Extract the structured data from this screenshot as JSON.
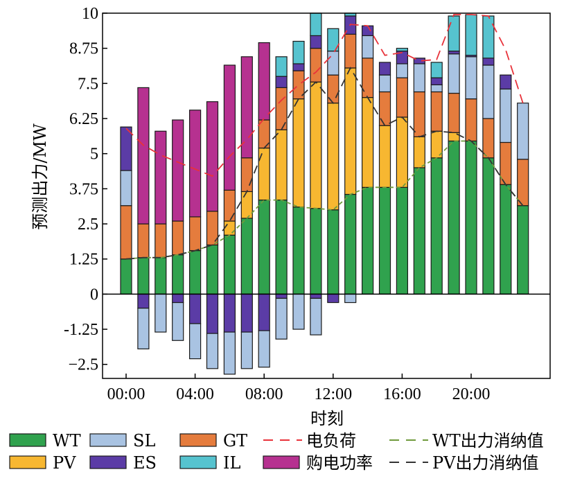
{
  "chart_data": {
    "type": "bar",
    "stacked": true,
    "xlabel": "时刻",
    "ylabel": "预测出力/MW",
    "ylim": [
      -3.0,
      10.0
    ],
    "yticks": [
      -2.5,
      -1.25,
      0,
      1.25,
      2.5,
      3.75,
      5,
      6.25,
      7.5,
      8.75,
      10
    ],
    "ytick_labels": [
      "−2.5",
      "-1.25",
      "0",
      "1.25",
      "2.5",
      "3.75",
      "5",
      "6.25",
      "7.5",
      "8.75",
      "10"
    ],
    "xtick_labels": [
      {
        "hour": 0,
        "label": "00:00"
      },
      {
        "hour": 4,
        "label": "04:00"
      },
      {
        "hour": 8,
        "label": "08:00"
      },
      {
        "hour": 12,
        "label": "12:00"
      },
      {
        "hour": 16,
        "label": "16:00"
      },
      {
        "hour": 20,
        "label": "20:00"
      }
    ],
    "hours": [
      0,
      1,
      2,
      3,
      4,
      5,
      6,
      7,
      8,
      9,
      10,
      11,
      12,
      13,
      14,
      15,
      16,
      17,
      18,
      19,
      20,
      21,
      22,
      23
    ],
    "series": [
      {
        "key": "WT",
        "name": "WT",
        "color": "#30a24e",
        "values": [
          1.25,
          1.3,
          1.3,
          1.4,
          1.55,
          1.75,
          2.1,
          2.7,
          3.35,
          3.35,
          3.1,
          3.05,
          3.0,
          3.55,
          3.8,
          3.8,
          3.8,
          4.5,
          4.85,
          5.45,
          5.45,
          4.85,
          3.9,
          3.15
        ]
      },
      {
        "key": "PV",
        "name": "PV",
        "color": "#f7b731",
        "values": [
          0,
          0,
          0,
          0,
          0,
          0,
          0.5,
          0.95,
          1.85,
          2.5,
          3.85,
          4.5,
          3.8,
          4.5,
          3.2,
          2.2,
          2.5,
          1.1,
          0.95,
          0.3,
          0,
          0,
          0,
          0
        ]
      },
      {
        "key": "GT",
        "name": "GT",
        "color": "#e57c3d",
        "values": [
          1.9,
          1.2,
          1.2,
          1.2,
          1.2,
          1.2,
          1.1,
          1.2,
          1.0,
          1.5,
          1.0,
          1.2,
          1.0,
          1.2,
          1.4,
          1.2,
          1.4,
          1.6,
          1.4,
          1.4,
          1.5,
          1.4,
          1.5,
          1.65
        ]
      },
      {
        "key": "SL",
        "name": "SL",
        "color": "#a9c3e2",
        "values": [
          1.25,
          0,
          0,
          0,
          0,
          0,
          0,
          0,
          0,
          0,
          0,
          0,
          0.85,
          0,
          0.8,
          0.6,
          0.5,
          1.0,
          0.25,
          1.4,
          1.5,
          1.9,
          1.9,
          2.0
        ]
      },
      {
        "key": "ES",
        "name": "ES",
        "color": "#5b3ca6",
        "values": [
          1.55,
          0,
          0,
          0,
          0,
          0,
          0,
          0,
          0,
          0.4,
          0.25,
          0.45,
          0,
          0.65,
          0.35,
          0.45,
          0.45,
          0.2,
          0.25,
          0.1,
          0.05,
          0.25,
          0.5,
          0
        ]
      },
      {
        "key": "IL",
        "name": "IL",
        "color": "#56c3cf",
        "values": [
          0,
          0,
          0,
          0,
          0,
          0,
          0,
          0,
          0,
          0.7,
          0.8,
          0.8,
          0.8,
          0.1,
          0,
          0,
          0.1,
          0,
          0.55,
          1.25,
          1.45,
          1.5,
          0,
          0
        ]
      },
      {
        "key": "BUY",
        "name": "购电功率",
        "color": "#b63190",
        "values": [
          0,
          4.85,
          3.3,
          3.6,
          3.8,
          3.9,
          4.45,
          3.6,
          2.75,
          0,
          0,
          0,
          0,
          0,
          0,
          0,
          0,
          0,
          0,
          0,
          0,
          0,
          0,
          0
        ]
      }
    ],
    "negative_series": [
      {
        "key": "ES",
        "values": [
          0,
          -0.5,
          0,
          -0.3,
          -1.05,
          -1.4,
          -1.35,
          -1.35,
          -1.3,
          -0.15,
          0,
          -0.15,
          -0.3,
          0,
          0,
          0,
          0,
          0,
          0,
          0,
          0,
          0,
          0,
          0
        ]
      },
      {
        "key": "SL",
        "values": [
          0,
          -1.45,
          -1.35,
          -1.35,
          -1.25,
          -1.25,
          -1.5,
          -1.3,
          -1.3,
          -1.45,
          -1.25,
          -1.3,
          0,
          -0.3,
          0,
          0,
          0,
          0,
          0,
          0,
          0,
          0,
          0,
          0
        ]
      }
    ],
    "lines": [
      {
        "key": "load",
        "name": "电负荷",
        "color": "#e8323a",
        "dash": "14,8",
        "values": [
          5.9,
          5.3,
          4.95,
          4.7,
          4.45,
          4.2,
          4.9,
          5.5,
          6.25,
          6.9,
          7.45,
          7.9,
          8.55,
          9.6,
          9.55,
          8.5,
          8.6,
          8.3,
          8.35,
          9.95,
          9.95,
          9.9,
          8.7,
          6.8
        ]
      },
      {
        "key": "wt_use",
        "name": "WT出力消纳值",
        "color": "#6f9a3c",
        "dash": "6,4",
        "values": [
          1.25,
          1.3,
          1.3,
          1.4,
          1.55,
          1.75,
          2.1,
          2.7,
          3.35,
          3.35,
          3.1,
          3.05,
          3.0,
          3.55,
          3.8,
          3.8,
          3.8,
          4.5,
          4.85,
          5.45,
          5.45,
          4.85,
          3.9,
          3.15
        ]
      },
      {
        "key": "pv_use",
        "name": "PV出力消纳值",
        "color": "#333333",
        "dash": "12,7",
        "values": [
          1.25,
          1.3,
          1.3,
          1.4,
          1.55,
          1.75,
          2.6,
          3.65,
          5.2,
          5.85,
          6.95,
          7.55,
          6.8,
          8.05,
          7.0,
          6.0,
          6.3,
          5.6,
          5.8,
          5.75,
          5.45,
          4.85,
          3.9,
          3.15
        ]
      }
    ],
    "legend": {
      "placement": "bottom",
      "items": [
        {
          "key": "WT",
          "label": "WT",
          "type": "box",
          "color": "#30a24e"
        },
        {
          "key": "SL",
          "label": "SL",
          "type": "box",
          "color": "#a9c3e2"
        },
        {
          "key": "GT",
          "label": "GT",
          "type": "box",
          "color": "#e57c3d"
        },
        {
          "key": "load",
          "label": "电负荷",
          "type": "line",
          "color": "#e8323a"
        },
        {
          "key": "wt_use",
          "label": "WT出力消纳值",
          "type": "line",
          "color": "#6f9a3c"
        },
        {
          "key": "PV",
          "label": "PV",
          "type": "box",
          "color": "#f7b731"
        },
        {
          "key": "ES",
          "label": "ES",
          "type": "box",
          "color": "#5b3ca6"
        },
        {
          "key": "IL",
          "label": "IL",
          "type": "box",
          "color": "#56c3cf"
        },
        {
          "key": "BUY",
          "label": "购电功率",
          "type": "box",
          "color": "#b63190"
        },
        {
          "key": "pv_use",
          "label": "PV出力消纳值",
          "type": "line",
          "color": "#333333"
        }
      ]
    }
  }
}
